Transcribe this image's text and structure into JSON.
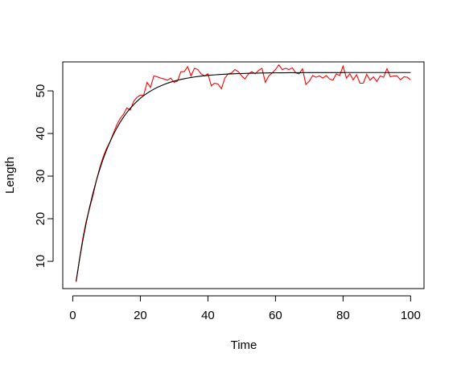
{
  "chart_data": {
    "type": "line",
    "x_label": "Time",
    "y_label": "Length",
    "x": [
      1,
      2,
      3,
      4,
      5,
      6,
      7,
      8,
      9,
      10,
      11,
      12,
      13,
      14,
      15,
      16,
      17,
      18,
      19,
      20,
      21,
      22,
      23,
      24,
      25,
      26,
      27,
      28,
      29,
      30,
      31,
      32,
      33,
      34,
      35,
      36,
      37,
      38,
      39,
      40,
      41,
      42,
      43,
      44,
      45,
      46,
      47,
      48,
      49,
      50,
      51,
      52,
      53,
      54,
      55,
      56,
      57,
      58,
      59,
      60,
      61,
      62,
      63,
      64,
      65,
      66,
      67,
      68,
      69,
      70,
      71,
      72,
      73,
      74,
      75,
      76,
      77,
      78,
      79,
      80,
      81,
      82,
      83,
      84,
      85,
      86,
      87,
      88,
      89,
      90,
      91,
      92,
      93,
      94,
      95,
      96,
      97,
      98,
      99,
      100
    ],
    "series": [
      {
        "color": "#ff0000",
        "values": [
          5.2,
          10.5,
          15.5,
          19.5,
          22.5,
          25.5,
          29,
          32,
          34.5,
          36.5,
          38,
          40,
          42,
          43.5,
          44.5,
          46,
          45.5,
          47.5,
          48.5,
          49,
          49,
          52,
          50.8,
          53.5,
          53.3,
          53,
          52.8,
          52.5,
          53,
          52,
          52.3,
          54.5,
          54.5,
          55.7,
          53.5,
          55.3,
          55,
          54,
          53.5,
          54,
          51.2,
          51.8,
          51.6,
          50.5,
          53,
          54,
          54.2,
          55,
          54.5,
          53.5,
          52.8,
          54,
          54.5,
          54,
          54.8,
          55.3,
          52,
          53.5,
          54.2,
          55,
          56.1,
          55,
          55.3,
          55,
          55.4,
          54.2,
          54,
          55.2,
          51.5,
          52.3,
          53.6,
          53.2,
          53.5,
          53,
          53.6,
          52.8,
          52.5,
          54,
          53.6,
          55.8,
          53,
          54,
          52.6,
          53.8,
          51.8,
          51.8,
          53.9,
          52.5,
          53.3,
          52.2,
          53.5,
          53.2,
          55.2,
          53.3,
          53.5,
          53.5,
          52.6,
          53.3,
          53.2,
          52.6
        ]
      },
      {
        "color": "#000000",
        "values": [
          5.33,
          10.44,
          15.0,
          19.1,
          22.77,
          26.05,
          29.0,
          31.63,
          34.0,
          36.11,
          38.0,
          39.7,
          41.22,
          42.59,
          43.81,
          44.9,
          45.88,
          46.76,
          47.54,
          48.25,
          48.88,
          49.44,
          49.95,
          50.4,
          50.81,
          51.17,
          51.5,
          51.79,
          52.05,
          52.29,
          52.5,
          52.68,
          52.85,
          53.0,
          53.14,
          53.26,
          53.37,
          53.46,
          53.55,
          53.63,
          53.7,
          53.76,
          53.82,
          53.87,
          53.91,
          53.95,
          53.99,
          54.02,
          54.05,
          54.08,
          54.1,
          54.12,
          54.14,
          54.16,
          54.17,
          54.19,
          54.2,
          54.21,
          54.22,
          54.23,
          54.24,
          54.25,
          54.25,
          54.26,
          54.26,
          54.27,
          54.27,
          54.27,
          54.28,
          54.28,
          54.28,
          54.28,
          54.28,
          54.29,
          54.29,
          54.29,
          54.29,
          54.29,
          54.29,
          54.29,
          54.3,
          54.3,
          54.3,
          54.3,
          54.3,
          54.3,
          54.3,
          54.3,
          54.3,
          54.3,
          54.3,
          54.3,
          54.3,
          54.3,
          54.3,
          54.3,
          54.3,
          54.3,
          54.3,
          54.3
        ]
      }
    ],
    "xlim": [
      -2.96,
      103.96
    ],
    "xticks": [
      0,
      20,
      40,
      60,
      80,
      100
    ],
    "ylim": [
      3.6,
      56.8
    ],
    "yticks": [
      10,
      20,
      30,
      40,
      50
    ]
  }
}
